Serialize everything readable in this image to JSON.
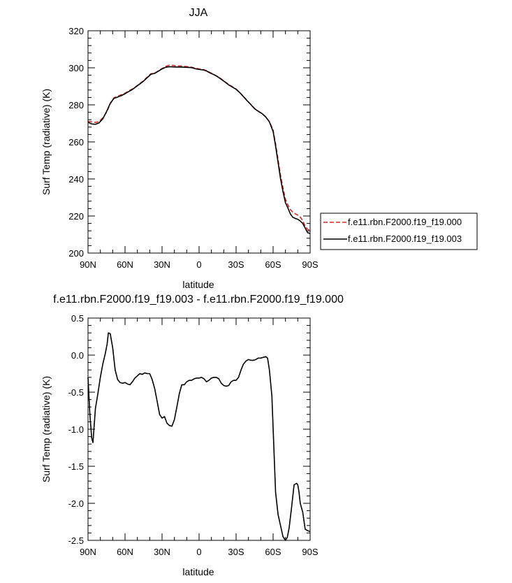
{
  "chart_data": [
    {
      "type": "line",
      "title": "JJA",
      "xlabel": "latitude",
      "ylabel": "Surf Temp (radiative) (K)",
      "xlim": [
        90,
        -90
      ],
      "ylim": [
        200,
        320
      ],
      "xticks": [
        90,
        60,
        30,
        0,
        -30,
        -60,
        -90
      ],
      "xtick_labels": [
        "90N",
        "60N",
        "30N",
        "0",
        "30S",
        "60S",
        "90S"
      ],
      "yticks": [
        200,
        220,
        240,
        260,
        280,
        300,
        320
      ],
      "ytick_labels": [
        "200",
        "220",
        "240",
        "260",
        "280",
        "300",
        "320"
      ],
      "grid": false,
      "legend": "right",
      "series": [
        {
          "name": "f.e11.rbn.F2000.f19_f19.000",
          "color": "#d62728",
          "dash": "dashed",
          "x": [
            90,
            87,
            84,
            81,
            78,
            75,
            72,
            69,
            66,
            63,
            60,
            57,
            54,
            51,
            48,
            45,
            42,
            39,
            36,
            33,
            30,
            27,
            24,
            21,
            18,
            15,
            12,
            9,
            6,
            3,
            0,
            -3,
            -6,
            -9,
            -12,
            -15,
            -18,
            -21,
            -24,
            -27,
            -30,
            -33,
            -36,
            -39,
            -42,
            -45,
            -48,
            -51,
            -54,
            -57,
            -60,
            -62,
            -64,
            -66,
            -68,
            -70,
            -72,
            -74,
            -76,
            -78,
            -80,
            -82,
            -84,
            -86,
            -88,
            -90
          ],
          "y": [
            271,
            270.8,
            270.5,
            271,
            273,
            276,
            280.5,
            283.8,
            284.6,
            285.5,
            286.3,
            287.5,
            288.6,
            290,
            291.5,
            293.1,
            295,
            296.8,
            297.1,
            298.3,
            299.6,
            300.8,
            301.4,
            301.3,
            301,
            301,
            300.8,
            300.6,
            300.3,
            299.8,
            299.4,
            299.2,
            298.5,
            297.4,
            296.4,
            295.3,
            294,
            292.5,
            291,
            289.8,
            288.5,
            286.7,
            284.5,
            282.3,
            280.2,
            278,
            276.6,
            275.3,
            273.5,
            271,
            266.4,
            259,
            250.5,
            242,
            235.3,
            229,
            226,
            223.5,
            222,
            221.2,
            220.5,
            219.5,
            217.5,
            214.5,
            212.8,
            212.2
          ]
        },
        {
          "name": "f.e11.rbn.F2000.f19_f19.003",
          "color": "#000000",
          "dash": "solid",
          "x": [
            90,
            87,
            84,
            81,
            78,
            75,
            72,
            69,
            66,
            63,
            60,
            57,
            54,
            51,
            48,
            45,
            42,
            39,
            36,
            33,
            30,
            27,
            24,
            21,
            18,
            15,
            12,
            9,
            6,
            3,
            0,
            -3,
            -6,
            -9,
            -12,
            -15,
            -18,
            -21,
            -24,
            -27,
            -30,
            -33,
            -36,
            -39,
            -42,
            -45,
            -48,
            -51,
            -54,
            -57,
            -60,
            -62,
            -64,
            -66,
            -68,
            -70,
            -72,
            -74,
            -76,
            -78,
            -80,
            -82,
            -84,
            -86,
            -88,
            -90
          ],
          "y": [
            270.6,
            269.7,
            269.5,
            270.3,
            272.5,
            276.3,
            280.8,
            283.5,
            284.2,
            285,
            286,
            287.2,
            288.3,
            289.8,
            291.3,
            292.8,
            294.7,
            296.5,
            297,
            298.2,
            299.4,
            300.3,
            300.6,
            300.5,
            300.4,
            300.4,
            300.3,
            300.2,
            300.1,
            299.5,
            299.1,
            298.9,
            298.3,
            297.2,
            296.3,
            295.2,
            293.8,
            292.3,
            290.8,
            289.6,
            288.4,
            286.6,
            284.4,
            282.2,
            280.1,
            277.9,
            276.5,
            275.3,
            273.5,
            270.8,
            265.6,
            257.8,
            249,
            240.2,
            233.2,
            227.2,
            224.3,
            221.1,
            219.3,
            218.7,
            218.2,
            217.3,
            216,
            213.5,
            211,
            210.5
          ]
        }
      ]
    },
    {
      "type": "line",
      "title": "f.e11.rbn.F2000.f19_f19.003 - f.e11.rbn.F2000.f19_f19.000",
      "xlabel": "latitude",
      "ylabel": "Surf Temp (radiative) (K)",
      "xlim": [
        90,
        -90
      ],
      "ylim": [
        -2.5,
        0.5
      ],
      "xticks": [
        90,
        60,
        30,
        0,
        -30,
        -60,
        -90
      ],
      "xtick_labels": [
        "90N",
        "60N",
        "30N",
        "0",
        "30S",
        "60S",
        "90S"
      ],
      "yticks": [
        -2.5,
        -2.0,
        -1.5,
        -1.0,
        -0.5,
        0.0,
        0.5
      ],
      "ytick_labels": [
        "-2.5",
        "-2.0",
        "-1.5",
        "-1.0",
        "-0.5",
        "0.0",
        "0.5"
      ],
      "grid": false,
      "series": [
        {
          "color": "#000000",
          "dash": "solid",
          "x": [
            90,
            88.5,
            87,
            86,
            84,
            82,
            80,
            78,
            76,
            74.5,
            73.5,
            72,
            70,
            68,
            66,
            64,
            62,
            60,
            58,
            56,
            54,
            52,
            50,
            48,
            46,
            44,
            42,
            40,
            38,
            36,
            34,
            32,
            30,
            28,
            26,
            24,
            22,
            20,
            18,
            16,
            14,
            12,
            10,
            8,
            6,
            4,
            2,
            0,
            -2,
            -4,
            -6,
            -8,
            -10,
            -12,
            -14,
            -16,
            -18,
            -20,
            -22,
            -24,
            -26,
            -28,
            -30,
            -32,
            -34,
            -36,
            -38,
            -40,
            -42,
            -44,
            -46,
            -48,
            -50,
            -52,
            -54,
            -55.5,
            -57,
            -59,
            -60.5,
            -62,
            -64,
            -66,
            -68,
            -70,
            -71.5,
            -73,
            -75,
            -77,
            -79,
            -80,
            -81,
            -82,
            -84,
            -86,
            -88,
            -90
          ],
          "y": [
            -0.3,
            -0.8,
            -1.12,
            -1.18,
            -0.72,
            -0.52,
            -0.3,
            -0.12,
            0.02,
            0.15,
            0.3,
            0.29,
            0.1,
            -0.2,
            -0.33,
            -0.37,
            -0.38,
            -0.37,
            -0.39,
            -0.4,
            -0.36,
            -0.31,
            -0.28,
            -0.25,
            -0.26,
            -0.24,
            -0.25,
            -0.25,
            -0.33,
            -0.45,
            -0.62,
            -0.8,
            -0.85,
            -0.83,
            -0.92,
            -0.95,
            -0.96,
            -0.87,
            -0.7,
            -0.52,
            -0.4,
            -0.4,
            -0.36,
            -0.34,
            -0.34,
            -0.32,
            -0.31,
            -0.31,
            -0.3,
            -0.32,
            -0.36,
            -0.34,
            -0.31,
            -0.3,
            -0.3,
            -0.32,
            -0.38,
            -0.41,
            -0.42,
            -0.41,
            -0.36,
            -0.34,
            -0.34,
            -0.3,
            -0.2,
            -0.12,
            -0.08,
            -0.06,
            -0.07,
            -0.07,
            -0.06,
            -0.04,
            -0.04,
            -0.03,
            -0.02,
            -0.04,
            -0.2,
            -0.55,
            -1.2,
            -1.85,
            -2.15,
            -2.3,
            -2.45,
            -2.5,
            -2.46,
            -2.33,
            -2.05,
            -1.75,
            -1.73,
            -1.75,
            -1.85,
            -2.0,
            -2.12,
            -2.35,
            -2.37,
            -2.38
          ]
        }
      ]
    }
  ]
}
